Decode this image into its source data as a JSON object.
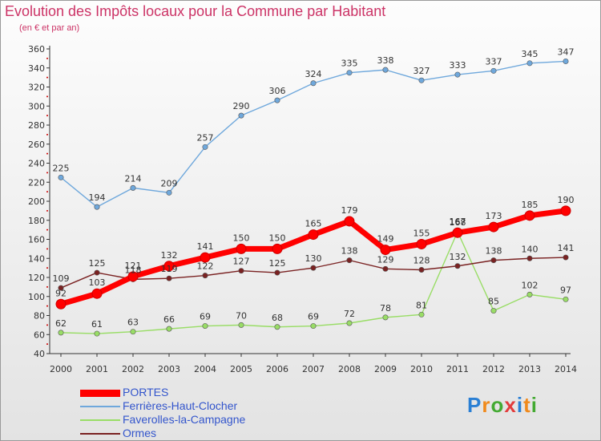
{
  "title": "Evolution des Impôts locaux pour la Commune par Habitant",
  "subtitle": "(en € et par an)",
  "logo": {
    "text": "Proxiti",
    "colors": [
      "#2a7fd4",
      "#f08a1c",
      "#44aa33",
      "#e23c3c",
      "#2a7fd4",
      "#f08a1c",
      "#44aa33"
    ]
  },
  "chart_data": {
    "type": "line",
    "title": "Evolution des Impôts locaux pour la Commune par Habitant",
    "subtitle": "(en € et par an)",
    "xlabel": "",
    "ylabel": "",
    "categories": [
      "2000",
      "2001",
      "2002",
      "2003",
      "2004",
      "2005",
      "2006",
      "2007",
      "2008",
      "2009",
      "2010",
      "2011",
      "2012",
      "2013",
      "2014"
    ],
    "ylim": [
      40,
      360
    ],
    "yticks": [
      40,
      60,
      80,
      100,
      120,
      140,
      160,
      180,
      200,
      220,
      240,
      260,
      280,
      300,
      320,
      340,
      360
    ],
    "grid": false,
    "legend": "bottom-left",
    "series": [
      {
        "name": "PORTES",
        "color": "#ff0000",
        "values": [
          92,
          103,
          121,
          132,
          141,
          150,
          150,
          165,
          179,
          149,
          155,
          167,
          173,
          185,
          190
        ]
      },
      {
        "name": "Ferrières-Haut-Clocher",
        "color": "#6fa8dc",
        "values": [
          225,
          194,
          214,
          209,
          257,
          290,
          306,
          324,
          335,
          338,
          327,
          333,
          337,
          345,
          347
        ]
      },
      {
        "name": "Faverolles-la-Campagne",
        "color": "#99dd66",
        "values": [
          62,
          61,
          63,
          66,
          69,
          70,
          68,
          69,
          72,
          78,
          81,
          168,
          85,
          102,
          97
        ]
      },
      {
        "name": "Ormes",
        "color": "#7a2222",
        "values": [
          109,
          125,
          118,
          119,
          122,
          127,
          125,
          130,
          138,
          129,
          128,
          132,
          138,
          140,
          141
        ]
      }
    ]
  }
}
